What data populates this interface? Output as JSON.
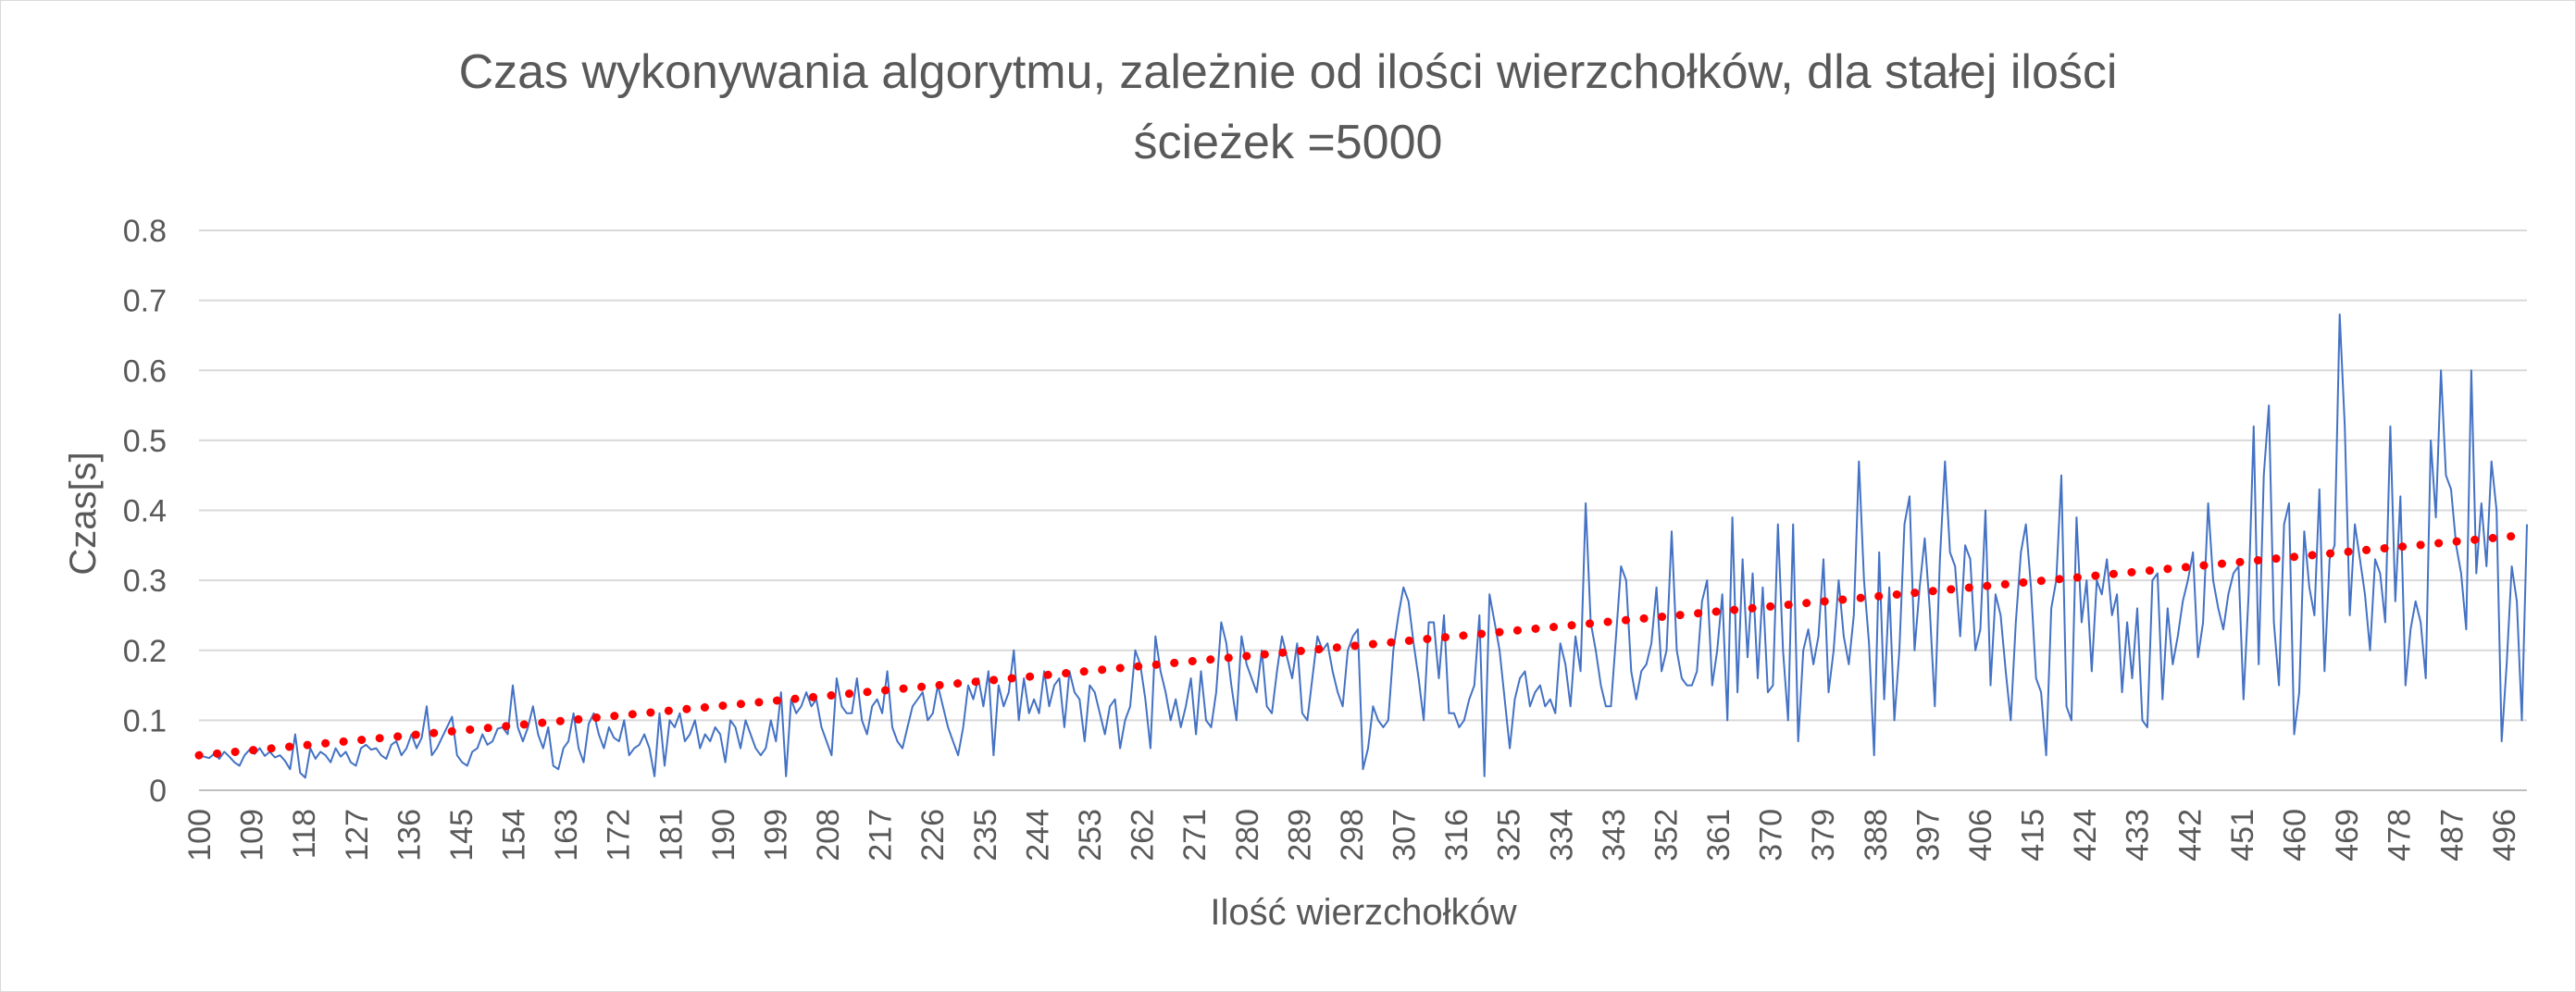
{
  "chart_data": {
    "type": "line",
    "title_line1": "Czas wykonywania algorytmu, zależnie od ilości wierzchołków, dla stałej ilości",
    "title_line2": "ścieżek =5000",
    "xlabel": "Ilość wierzchołków",
    "ylabel": "Czas[s]",
    "ylim": [
      0,
      0.8
    ],
    "yticks": [
      "0",
      "0.1",
      "0.2",
      "0.3",
      "0.4",
      "0.5",
      "0.6",
      "0.7",
      "0.8"
    ],
    "xtick_labels": [
      "100",
      "109",
      "118",
      "127",
      "136",
      "145",
      "154",
      "163",
      "172",
      "181",
      "190",
      "199",
      "208",
      "217",
      "226",
      "235",
      "244",
      "253",
      "262",
      "271",
      "280",
      "289",
      "298",
      "307",
      "316",
      "325",
      "334",
      "343",
      "352",
      "361",
      "370",
      "379",
      "388",
      "397",
      "406",
      "415",
      "424",
      "433",
      "442",
      "451",
      "460",
      "469",
      "478",
      "487",
      "496"
    ],
    "x_start": 100,
    "x_end": 500,
    "grid": true,
    "legend": "none",
    "colors": {
      "series": "#4472c4",
      "trend": "#ff0000",
      "grid": "#d9d9d9",
      "axis": "#bfbfbf"
    },
    "series": [
      {
        "values": [
          0.05,
          0.048,
          0.046,
          0.052,
          0.045,
          0.055,
          0.048,
          0.04,
          0.035,
          0.05,
          0.058,
          0.052,
          0.06,
          0.049,
          0.055,
          0.047,
          0.05,
          0.042,
          0.03,
          0.08,
          0.025,
          0.018,
          0.06,
          0.045,
          0.055,
          0.05,
          0.04,
          0.06,
          0.048,
          0.055,
          0.04,
          0.035,
          0.06,
          0.065,
          0.058,
          0.06,
          0.05,
          0.045,
          0.065,
          0.07,
          0.05,
          0.06,
          0.08,
          0.06,
          0.075,
          0.12,
          0.05,
          0.06,
          0.075,
          0.09,
          0.105,
          0.05,
          0.04,
          0.035,
          0.055,
          0.06,
          0.08,
          0.065,
          0.07,
          0.088,
          0.09,
          0.08,
          0.15,
          0.09,
          0.07,
          0.09,
          0.12,
          0.08,
          0.06,
          0.09,
          0.035,
          0.03,
          0.06,
          0.07,
          0.11,
          0.06,
          0.04,
          0.095,
          0.11,
          0.08,
          0.06,
          0.09,
          0.075,
          0.07,
          0.1,
          0.05,
          0.06,
          0.065,
          0.08,
          0.06,
          0.02,
          0.11,
          0.035,
          0.1,
          0.09,
          0.11,
          0.07,
          0.08,
          0.1,
          0.06,
          0.08,
          0.07,
          0.09,
          0.08,
          0.04,
          0.1,
          0.09,
          0.06,
          0.1,
          0.08,
          0.06,
          0.05,
          0.06,
          0.1,
          0.07,
          0.14,
          0.02,
          0.13,
          0.11,
          0.12,
          0.14,
          0.12,
          0.13,
          0.09,
          0.07,
          0.05,
          0.16,
          0.12,
          0.11,
          0.11,
          0.16,
          0.1,
          0.08,
          0.12,
          0.13,
          0.11,
          0.17,
          0.09,
          0.07,
          0.06,
          0.09,
          0.12,
          0.13,
          0.14,
          0.1,
          0.11,
          0.15,
          0.12,
          0.09,
          0.07,
          0.05,
          0.09,
          0.15,
          0.13,
          0.16,
          0.12,
          0.17,
          0.05,
          0.15,
          0.12,
          0.14,
          0.2,
          0.1,
          0.16,
          0.11,
          0.13,
          0.11,
          0.17,
          0.12,
          0.15,
          0.16,
          0.09,
          0.17,
          0.14,
          0.13,
          0.07,
          0.15,
          0.14,
          0.11,
          0.08,
          0.12,
          0.13,
          0.06,
          0.1,
          0.12,
          0.2,
          0.18,
          0.13,
          0.06,
          0.22,
          0.17,
          0.14,
          0.1,
          0.13,
          0.09,
          0.12,
          0.16,
          0.08,
          0.17,
          0.1,
          0.09,
          0.14,
          0.24,
          0.21,
          0.15,
          0.1,
          0.22,
          0.18,
          0.16,
          0.14,
          0.2,
          0.12,
          0.11,
          0.17,
          0.22,
          0.19,
          0.16,
          0.21,
          0.11,
          0.1,
          0.16,
          0.22,
          0.2,
          0.21,
          0.17,
          0.14,
          0.12,
          0.2,
          0.22,
          0.23,
          0.03,
          0.06,
          0.12,
          0.1,
          0.09,
          0.1,
          0.2,
          0.25,
          0.29,
          0.27,
          0.21,
          0.16,
          0.1,
          0.24,
          0.24,
          0.16,
          0.25,
          0.11,
          0.11,
          0.09,
          0.1,
          0.13,
          0.15,
          0.25,
          0.02,
          0.28,
          0.24,
          0.2,
          0.13,
          0.06,
          0.13,
          0.16,
          0.17,
          0.12,
          0.14,
          0.15,
          0.12,
          0.13,
          0.11,
          0.21,
          0.18,
          0.12,
          0.22,
          0.17,
          0.41,
          0.24,
          0.2,
          0.15,
          0.12,
          0.12,
          0.22,
          0.32,
          0.3,
          0.17,
          0.13,
          0.17,
          0.18,
          0.21,
          0.29,
          0.17,
          0.2,
          0.37,
          0.2,
          0.16,
          0.15,
          0.15,
          0.17,
          0.27,
          0.3,
          0.15,
          0.2,
          0.28,
          0.1,
          0.39,
          0.14,
          0.33,
          0.19,
          0.31,
          0.16,
          0.29,
          0.14,
          0.15,
          0.38,
          0.2,
          0.1,
          0.38,
          0.07,
          0.2,
          0.23,
          0.18,
          0.22,
          0.33,
          0.14,
          0.2,
          0.3,
          0.22,
          0.18,
          0.25,
          0.47,
          0.3,
          0.21,
          0.05,
          0.34,
          0.13,
          0.29,
          0.1,
          0.2,
          0.38,
          0.42,
          0.2,
          0.29,
          0.36,
          0.26,
          0.12,
          0.33,
          0.47,
          0.34,
          0.32,
          0.22,
          0.35,
          0.33,
          0.2,
          0.23,
          0.4,
          0.15,
          0.28,
          0.25,
          0.17,
          0.1,
          0.24,
          0.34,
          0.38,
          0.29,
          0.16,
          0.14,
          0.05,
          0.26,
          0.3,
          0.45,
          0.12,
          0.1,
          0.39,
          0.24,
          0.3,
          0.17,
          0.3,
          0.28,
          0.33,
          0.25,
          0.28,
          0.14,
          0.24,
          0.16,
          0.26,
          0.1,
          0.09,
          0.3,
          0.31,
          0.13,
          0.26,
          0.18,
          0.22,
          0.27,
          0.3,
          0.34,
          0.19,
          0.24,
          0.41,
          0.3,
          0.26,
          0.23,
          0.28,
          0.31,
          0.32,
          0.13,
          0.28,
          0.52,
          0.18,
          0.45,
          0.55,
          0.24,
          0.15,
          0.38,
          0.41,
          0.08,
          0.14,
          0.37,
          0.29,
          0.25,
          0.43,
          0.17,
          0.33,
          0.35,
          0.68,
          0.52,
          0.25,
          0.38,
          0.33,
          0.28,
          0.2,
          0.33,
          0.31,
          0.24,
          0.52,
          0.27,
          0.42,
          0.15,
          0.23,
          0.27,
          0.24,
          0.16,
          0.5,
          0.39,
          0.6,
          0.45,
          0.43,
          0.35,
          0.31,
          0.23,
          0.6,
          0.31,
          0.41,
          0.32,
          0.47,
          0.4,
          0.07,
          0.18,
          0.32,
          0.27,
          0.1,
          0.38
        ]
      },
      {
        "trendline": "linear",
        "start": 0.05,
        "end": 0.365
      }
    ]
  }
}
